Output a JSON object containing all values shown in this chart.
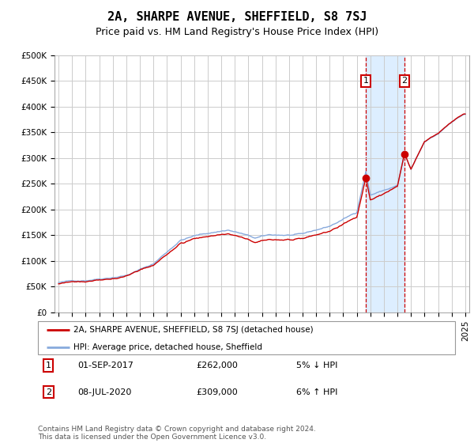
{
  "title": "2A, SHARPE AVENUE, SHEFFIELD, S8 7SJ",
  "subtitle": "Price paid vs. HM Land Registry's House Price Index (HPI)",
  "ylabel_ticks": [
    "£0",
    "£50K",
    "£100K",
    "£150K",
    "£200K",
    "£250K",
    "£300K",
    "£350K",
    "£400K",
    "£450K",
    "£500K"
  ],
  "ytick_values": [
    0,
    50000,
    100000,
    150000,
    200000,
    250000,
    300000,
    350000,
    400000,
    450000,
    500000
  ],
  "ylim": [
    0,
    500000
  ],
  "line_color_red": "#cc0000",
  "line_color_blue": "#88aadd",
  "shade_color": "#ddeeff",
  "grid_color": "#cccccc",
  "bg_color": "#f5f5f5",
  "transaction1_year": 2017.67,
  "transaction1_price": 262000,
  "transaction1_date": "01-SEP-2017",
  "transaction1_pct": "5% ↓ HPI",
  "transaction2_year": 2020.52,
  "transaction2_price": 309000,
  "transaction2_date": "08-JUL-2020",
  "transaction2_pct": "6% ↑ HPI",
  "legend_line1": "2A, SHARPE AVENUE, SHEFFIELD, S8 7SJ (detached house)",
  "legend_line2": "HPI: Average price, detached house, Sheffield",
  "footer": "Contains HM Land Registry data © Crown copyright and database right 2024.\nThis data is licensed under the Open Government Licence v3.0.",
  "title_fontsize": 11,
  "subtitle_fontsize": 9,
  "tick_fontsize": 7.5
}
